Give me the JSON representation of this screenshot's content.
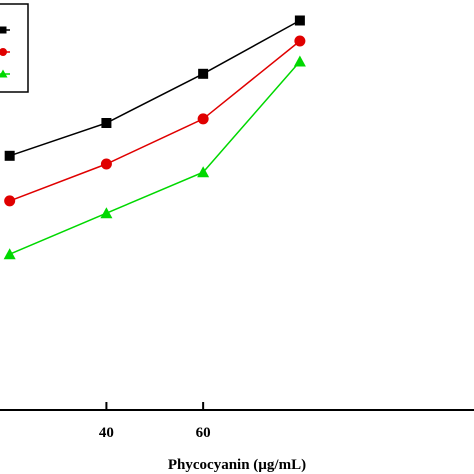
{
  "chart_data": {
    "type": "line",
    "title": "",
    "xlabel": "Phycocyanin (µg/mL)",
    "ylabel": "",
    "xlim": [
      18,
      116
    ],
    "ylim": [
      0,
      100
    ],
    "xticks": [
      40,
      60
    ],
    "grid": false,
    "legend_position": "top-left",
    "series": [
      {
        "color": "#000000",
        "marker": "square",
        "x": [
          20,
          40,
          60,
          80
        ],
        "y": [
          62,
          70,
          82,
          95
        ]
      },
      {
        "color": "#e00000",
        "marker": "circle",
        "x": [
          20,
          40,
          60,
          80
        ],
        "y": [
          51,
          60,
          71,
          90
        ]
      },
      {
        "color": "#00d800",
        "marker": "triangle",
        "x": [
          20,
          40,
          60,
          80
        ],
        "y": [
          38,
          48,
          58,
          85
        ]
      }
    ]
  }
}
